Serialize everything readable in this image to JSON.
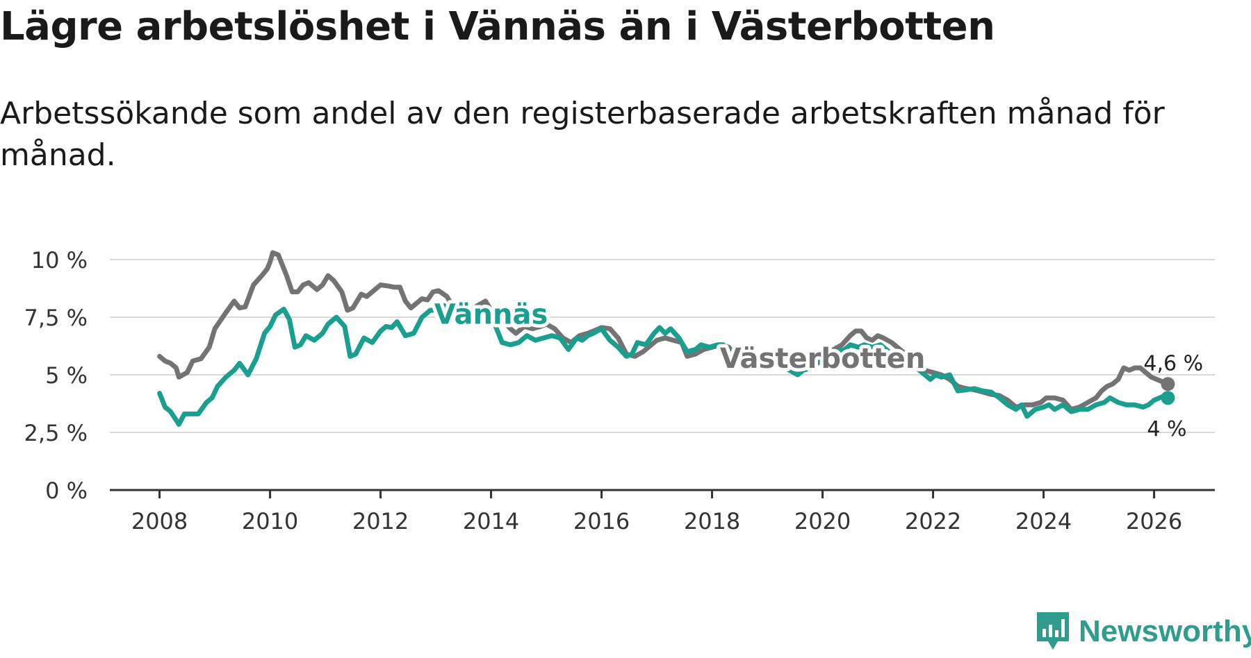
{
  "header": {
    "title": "Lägre arbetslöshet i Vännäs än i Västerbotten",
    "subtitle": "Arbetssökande som andel av den registerbaserade arbetskraften månad för månad."
  },
  "brand": {
    "name": "Newsworthy"
  },
  "chart_data": {
    "type": "line",
    "title": "Lägre arbetslöshet i Vännäs än i Västerbotten",
    "subtitle": "Arbetssökande som andel av den registerbaserade arbetskraften månad för månad.",
    "xlabel": "",
    "ylabel": "",
    "xlim": [
      2007.1,
      2027.1
    ],
    "ylim": [
      0,
      10
    ],
    "y_ticks": [
      0,
      2.5,
      5,
      7.5,
      10
    ],
    "y_tick_labels": [
      "0 %",
      "2,5 %",
      "5 %",
      "7,5 %",
      "10 %"
    ],
    "x_ticks": [
      2008,
      2010,
      2012,
      2014,
      2016,
      2018,
      2020,
      2022,
      2024,
      2026
    ],
    "x_tick_labels": [
      "2008",
      "2010",
      "2012",
      "2014",
      "2016",
      "2018",
      "2020",
      "2022",
      "2024",
      "2026"
    ],
    "grid": true,
    "colors": {
      "vasterbotten": "#737373",
      "vannas": "#1a9e8f",
      "grid": "#d9d9d9",
      "axis": "#333333"
    },
    "series": [
      {
        "name": "Västerbotten",
        "color": "#737373",
        "end_label": "4,6 %",
        "points": [
          [
            2008.0,
            5.8
          ],
          [
            2008.1,
            5.6
          ],
          [
            2008.2,
            5.5
          ],
          [
            2008.3,
            5.3
          ],
          [
            2008.35,
            4.9
          ],
          [
            2008.5,
            5.1
          ],
          [
            2008.6,
            5.6
          ],
          [
            2008.75,
            5.7
          ],
          [
            2008.9,
            6.2
          ],
          [
            2009.0,
            7.0
          ],
          [
            2009.2,
            7.7
          ],
          [
            2009.35,
            8.2
          ],
          [
            2009.45,
            7.9
          ],
          [
            2009.55,
            7.95
          ],
          [
            2009.7,
            8.9
          ],
          [
            2009.85,
            9.3
          ],
          [
            2009.95,
            9.6
          ],
          [
            2010.0,
            9.9
          ],
          [
            2010.05,
            10.3
          ],
          [
            2010.15,
            10.2
          ],
          [
            2010.3,
            9.3
          ],
          [
            2010.4,
            8.6
          ],
          [
            2010.5,
            8.6
          ],
          [
            2010.6,
            8.9
          ],
          [
            2010.7,
            9.0
          ],
          [
            2010.85,
            8.7
          ],
          [
            2010.95,
            8.9
          ],
          [
            2011.05,
            9.3
          ],
          [
            2011.15,
            9.1
          ],
          [
            2011.3,
            8.6
          ],
          [
            2011.4,
            7.8
          ],
          [
            2011.5,
            7.9
          ],
          [
            2011.65,
            8.5
          ],
          [
            2011.75,
            8.4
          ],
          [
            2011.9,
            8.7
          ],
          [
            2012.0,
            8.9
          ],
          [
            2012.15,
            8.85
          ],
          [
            2012.25,
            8.8
          ],
          [
            2012.35,
            8.8
          ],
          [
            2012.45,
            8.2
          ],
          [
            2012.55,
            7.9
          ],
          [
            2012.65,
            8.1
          ],
          [
            2012.75,
            8.3
          ],
          [
            2012.85,
            8.25
          ],
          [
            2012.95,
            8.6
          ],
          [
            2013.05,
            8.65
          ],
          [
            2013.2,
            8.4
          ],
          [
            2013.3,
            8.0
          ],
          [
            2013.45,
            7.6
          ],
          [
            2013.6,
            7.7
          ],
          [
            2013.75,
            8.0
          ],
          [
            2013.9,
            8.2
          ],
          [
            2014.05,
            7.6
          ],
          [
            2014.2,
            7.4
          ],
          [
            2014.35,
            7.0
          ],
          [
            2014.45,
            6.8
          ],
          [
            2014.6,
            7.1
          ],
          [
            2014.75,
            7.0
          ],
          [
            2014.9,
            7.1
          ],
          [
            2015.0,
            7.2
          ],
          [
            2015.15,
            7.0
          ],
          [
            2015.3,
            6.6
          ],
          [
            2015.45,
            6.4
          ],
          [
            2015.6,
            6.7
          ],
          [
            2015.75,
            6.8
          ],
          [
            2015.9,
            6.95
          ],
          [
            2016.0,
            7.05
          ],
          [
            2016.15,
            7.0
          ],
          [
            2016.3,
            6.6
          ],
          [
            2016.45,
            5.9
          ],
          [
            2016.6,
            5.8
          ],
          [
            2016.75,
            6.0
          ],
          [
            2016.9,
            6.3
          ],
          [
            2017.0,
            6.5
          ],
          [
            2017.15,
            6.6
          ],
          [
            2017.3,
            6.5
          ],
          [
            2017.45,
            6.4
          ],
          [
            2017.55,
            5.8
          ],
          [
            2017.7,
            5.9
          ],
          [
            2017.85,
            6.1
          ],
          [
            2018.0,
            6.2
          ],
          [
            2018.15,
            6.3
          ],
          [
            2018.3,
            6.2
          ],
          [
            2018.45,
            5.8
          ],
          [
            2018.6,
            5.5
          ],
          [
            2018.75,
            5.4
          ],
          [
            2018.9,
            5.5
          ],
          [
            2019.05,
            5.6
          ],
          [
            2019.2,
            5.5
          ],
          [
            2019.35,
            5.3
          ],
          [
            2019.5,
            5.15
          ],
          [
            2019.6,
            5.3
          ],
          [
            2019.75,
            5.35
          ],
          [
            2019.9,
            5.5
          ],
          [
            2020.05,
            5.7
          ],
          [
            2020.2,
            6.1
          ],
          [
            2020.35,
            6.3
          ],
          [
            2020.5,
            6.7
          ],
          [
            2020.6,
            6.9
          ],
          [
            2020.7,
            6.9
          ],
          [
            2020.8,
            6.6
          ],
          [
            2020.9,
            6.5
          ],
          [
            2021.0,
            6.7
          ],
          [
            2021.1,
            6.6
          ],
          [
            2021.25,
            6.4
          ],
          [
            2021.4,
            6.1
          ],
          [
            2021.55,
            5.8
          ],
          [
            2021.7,
            5.5
          ],
          [
            2021.85,
            5.2
          ],
          [
            2022.0,
            5.1
          ],
          [
            2022.15,
            5.0
          ],
          [
            2022.3,
            4.8
          ],
          [
            2022.45,
            4.5
          ],
          [
            2022.6,
            4.4
          ],
          [
            2022.75,
            4.35
          ],
          [
            2022.9,
            4.25
          ],
          [
            2023.05,
            4.15
          ],
          [
            2023.2,
            4.1
          ],
          [
            2023.35,
            3.9
          ],
          [
            2023.5,
            3.6
          ],
          [
            2023.65,
            3.7
          ],
          [
            2023.8,
            3.7
          ],
          [
            2023.95,
            3.8
          ],
          [
            2024.05,
            4.0
          ],
          [
            2024.2,
            4.0
          ],
          [
            2024.35,
            3.9
          ],
          [
            2024.5,
            3.5
          ],
          [
            2024.65,
            3.6
          ],
          [
            2024.8,
            3.8
          ],
          [
            2024.95,
            4.0
          ],
          [
            2025.05,
            4.3
          ],
          [
            2025.15,
            4.5
          ],
          [
            2025.25,
            4.6
          ],
          [
            2025.35,
            4.8
          ],
          [
            2025.45,
            5.3
          ],
          [
            2025.55,
            5.2
          ],
          [
            2025.65,
            5.3
          ],
          [
            2025.75,
            5.3
          ],
          [
            2025.85,
            5.1
          ],
          [
            2025.95,
            4.9
          ],
          [
            2026.05,
            4.8
          ],
          [
            2026.15,
            4.7
          ],
          [
            2026.25,
            4.6
          ]
        ]
      },
      {
        "name": "Vännäs",
        "color": "#1a9e8f",
        "end_label": "4 %",
        "points": [
          [
            2008.0,
            4.2
          ],
          [
            2008.1,
            3.6
          ],
          [
            2008.2,
            3.4
          ],
          [
            2008.35,
            2.85
          ],
          [
            2008.45,
            3.3
          ],
          [
            2008.55,
            3.3
          ],
          [
            2008.7,
            3.3
          ],
          [
            2008.85,
            3.8
          ],
          [
            2008.95,
            4.0
          ],
          [
            2009.05,
            4.5
          ],
          [
            2009.2,
            4.9
          ],
          [
            2009.35,
            5.2
          ],
          [
            2009.45,
            5.5
          ],
          [
            2009.6,
            5.0
          ],
          [
            2009.75,
            5.7
          ],
          [
            2009.9,
            6.8
          ],
          [
            2010.0,
            7.1
          ],
          [
            2010.1,
            7.6
          ],
          [
            2010.25,
            7.85
          ],
          [
            2010.35,
            7.4
          ],
          [
            2010.45,
            6.2
          ],
          [
            2010.55,
            6.3
          ],
          [
            2010.65,
            6.7
          ],
          [
            2010.8,
            6.5
          ],
          [
            2010.95,
            6.8
          ],
          [
            2011.05,
            7.2
          ],
          [
            2011.2,
            7.5
          ],
          [
            2011.35,
            7.1
          ],
          [
            2011.45,
            5.8
          ],
          [
            2011.55,
            5.9
          ],
          [
            2011.7,
            6.6
          ],
          [
            2011.85,
            6.4
          ],
          [
            2012.0,
            6.9
          ],
          [
            2012.1,
            7.1
          ],
          [
            2012.2,
            7.05
          ],
          [
            2012.3,
            7.3
          ],
          [
            2012.45,
            6.7
          ],
          [
            2012.6,
            6.8
          ],
          [
            2012.75,
            7.5
          ],
          [
            2012.9,
            7.8
          ],
          [
            2013.0,
            7.8
          ],
          [
            2013.15,
            8.0
          ],
          [
            2013.3,
            7.6
          ],
          [
            2013.45,
            7.2
          ],
          [
            2013.6,
            7.3
          ],
          [
            2013.75,
            7.6
          ],
          [
            2013.9,
            7.5
          ],
          [
            2014.05,
            7.3
          ],
          [
            2014.2,
            6.4
          ],
          [
            2014.35,
            6.3
          ],
          [
            2014.5,
            6.4
          ],
          [
            2014.65,
            6.7
          ],
          [
            2014.8,
            6.5
          ],
          [
            2014.95,
            6.6
          ],
          [
            2015.1,
            6.7
          ],
          [
            2015.25,
            6.6
          ],
          [
            2015.4,
            6.1
          ],
          [
            2015.55,
            6.6
          ],
          [
            2015.65,
            6.5
          ],
          [
            2015.75,
            6.7
          ],
          [
            2015.85,
            6.8
          ],
          [
            2016.0,
            7.0
          ],
          [
            2016.15,
            6.5
          ],
          [
            2016.3,
            6.2
          ],
          [
            2016.45,
            5.8
          ],
          [
            2016.55,
            5.9
          ],
          [
            2016.65,
            6.4
          ],
          [
            2016.8,
            6.3
          ],
          [
            2016.95,
            6.8
          ],
          [
            2017.05,
            7.05
          ],
          [
            2017.15,
            6.8
          ],
          [
            2017.25,
            7.0
          ],
          [
            2017.4,
            6.6
          ],
          [
            2017.55,
            6.0
          ],
          [
            2017.7,
            6.1
          ],
          [
            2017.8,
            6.3
          ],
          [
            2017.95,
            6.2
          ],
          [
            2018.1,
            6.3
          ],
          [
            2018.2,
            6.3
          ],
          [
            2018.35,
            5.9
          ],
          [
            2018.5,
            5.7
          ],
          [
            2018.65,
            5.5
          ],
          [
            2018.8,
            5.4
          ],
          [
            2018.95,
            5.5
          ],
          [
            2019.1,
            5.5
          ],
          [
            2019.25,
            5.4
          ],
          [
            2019.4,
            5.2
          ],
          [
            2019.55,
            5.0
          ],
          [
            2019.65,
            5.2
          ],
          [
            2019.8,
            5.3
          ],
          [
            2019.95,
            5.6
          ],
          [
            2020.1,
            5.7
          ],
          [
            2020.25,
            6.0
          ],
          [
            2020.4,
            6.1
          ],
          [
            2020.5,
            6.3
          ],
          [
            2020.65,
            6.2
          ],
          [
            2020.75,
            6.3
          ],
          [
            2020.9,
            6.2
          ],
          [
            2021.05,
            6.3
          ],
          [
            2021.2,
            6.0
          ],
          [
            2021.35,
            5.7
          ],
          [
            2021.5,
            5.6
          ],
          [
            2021.65,
            5.4
          ],
          [
            2021.8,
            5.1
          ],
          [
            2021.95,
            4.8
          ],
          [
            2022.05,
            5.0
          ],
          [
            2022.15,
            4.9
          ],
          [
            2022.3,
            5.0
          ],
          [
            2022.45,
            4.3
          ],
          [
            2022.6,
            4.35
          ],
          [
            2022.75,
            4.4
          ],
          [
            2022.9,
            4.3
          ],
          [
            2023.05,
            4.25
          ],
          [
            2023.2,
            4.0
          ],
          [
            2023.35,
            3.7
          ],
          [
            2023.5,
            3.5
          ],
          [
            2023.6,
            3.7
          ],
          [
            2023.7,
            3.2
          ],
          [
            2023.85,
            3.5
          ],
          [
            2024.0,
            3.6
          ],
          [
            2024.1,
            3.7
          ],
          [
            2024.2,
            3.5
          ],
          [
            2024.35,
            3.7
          ],
          [
            2024.5,
            3.4
          ],
          [
            2024.65,
            3.5
          ],
          [
            2024.8,
            3.5
          ],
          [
            2024.95,
            3.7
          ],
          [
            2025.1,
            3.8
          ],
          [
            2025.2,
            4.0
          ],
          [
            2025.35,
            3.8
          ],
          [
            2025.5,
            3.7
          ],
          [
            2025.65,
            3.7
          ],
          [
            2025.8,
            3.6
          ],
          [
            2025.9,
            3.7
          ],
          [
            2026.0,
            3.9
          ],
          [
            2026.1,
            4.0
          ],
          [
            2026.2,
            4.1
          ],
          [
            2026.25,
            4.0
          ]
        ]
      }
    ],
    "annotations": [
      {
        "text": "Vännäs",
        "series": "Vännäs",
        "x": 2014.0,
        "y": 7.6
      },
      {
        "text": "Västerbotten",
        "series": "Västerbotten",
        "x": 2020.0,
        "y": 5.7
      }
    ]
  }
}
